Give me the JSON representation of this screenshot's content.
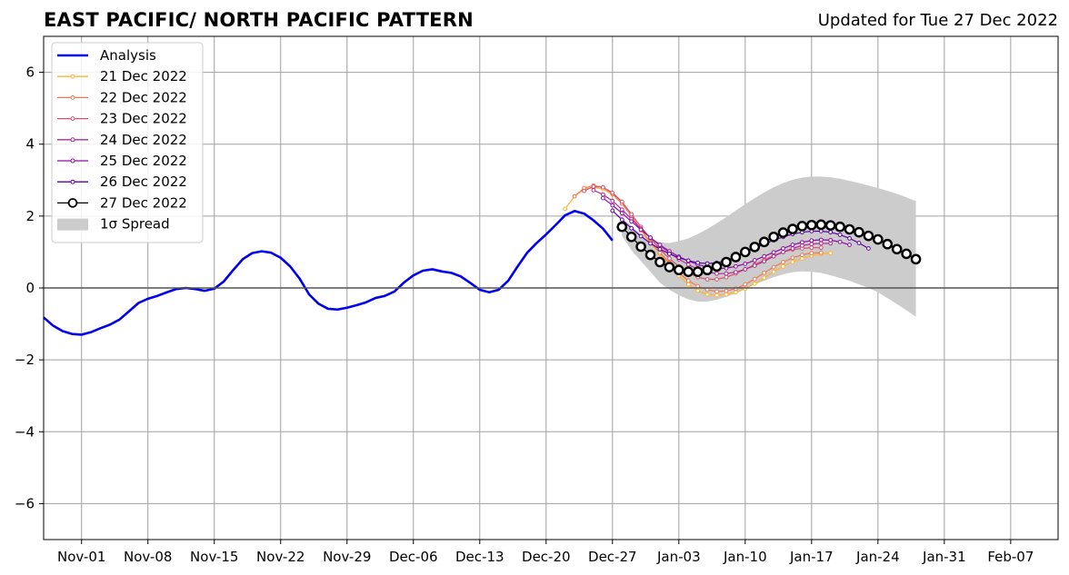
{
  "page": {
    "title": "EAST PACIFIC/ NORTH PACIFIC PATTERN",
    "updated": "Updated for Tue 27 Dec 2022"
  },
  "chart_data": {
    "type": "line",
    "title": "EAST PACIFIC/ NORTH PACIFIC PATTERN",
    "xlabel": "",
    "ylabel": "",
    "ylim": [
      -7,
      7
    ],
    "y_ticks": [
      -6,
      -4,
      -2,
      0,
      2,
      4,
      6
    ],
    "y_tick_labels": [
      "−6",
      "−4",
      "−2",
      "0",
      "2",
      "4",
      "6"
    ],
    "x_axis": "days since 2022-10-26",
    "xlim": [
      0,
      107
    ],
    "x_ticks": [
      {
        "day": 4,
        "label": "Nov-01"
      },
      {
        "day": 11,
        "label": "Nov-08"
      },
      {
        "day": 18,
        "label": "Nov-15"
      },
      {
        "day": 25,
        "label": "Nov-22"
      },
      {
        "day": 32,
        "label": "Nov-29"
      },
      {
        "day": 39,
        "label": "Dec-06"
      },
      {
        "day": 46,
        "label": "Dec-13"
      },
      {
        "day": 53,
        "label": "Dec-20"
      },
      {
        "day": 60,
        "label": "Dec-27"
      },
      {
        "day": 67,
        "label": "Jan-03"
      },
      {
        "day": 74,
        "label": "Jan-10"
      },
      {
        "day": 81,
        "label": "Jan-17"
      },
      {
        "day": 88,
        "label": "Jan-24"
      },
      {
        "day": 95,
        "label": "Jan-31"
      },
      {
        "day": 102,
        "label": "Feb-07"
      }
    ],
    "grid": true,
    "legend_position": "top-left",
    "analysis": {
      "name": "Analysis",
      "color": "#0000ee",
      "x_start": 0,
      "values": [
        -0.82,
        -1.05,
        -1.2,
        -1.28,
        -1.3,
        -1.23,
        -1.12,
        -1.02,
        -0.88,
        -0.65,
        -0.42,
        -0.3,
        -0.22,
        -0.12,
        -0.03,
        0.0,
        -0.03,
        -0.08,
        -0.02,
        0.18,
        0.5,
        0.8,
        0.97,
        1.02,
        0.98,
        0.84,
        0.6,
        0.26,
        -0.18,
        -0.44,
        -0.58,
        -0.6,
        -0.55,
        -0.48,
        -0.4,
        -0.28,
        -0.22,
        -0.1,
        0.15,
        0.35,
        0.48,
        0.52,
        0.46,
        0.42,
        0.32,
        0.14,
        -0.05,
        -0.12,
        -0.05,
        0.2,
        0.6,
        0.98,
        1.25,
        1.49,
        1.75,
        2.02,
        2.14,
        2.07,
        1.88,
        1.65,
        1.32
      ]
    },
    "forecasts": [
      {
        "name": "21 Dec 2022",
        "color": "#fdb42f",
        "x_start": 55,
        "values": [
          2.2,
          2.55,
          2.75,
          2.8,
          2.75,
          2.6,
          2.35,
          2.0,
          1.6,
          1.25,
          0.95,
          0.65,
          0.35,
          0.1,
          -0.08,
          -0.18,
          -0.2,
          -0.18,
          -0.12,
          -0.02,
          0.12,
          0.28,
          0.45,
          0.6,
          0.72,
          0.82,
          0.9,
          0.95,
          0.97
        ]
      },
      {
        "name": "22 Dec 2022",
        "color": "#ed7953",
        "x_start": 56,
        "values": [
          2.55,
          2.78,
          2.85,
          2.8,
          2.62,
          2.35,
          2.0,
          1.62,
          1.28,
          0.98,
          0.7,
          0.42,
          0.2,
          0.05,
          -0.05,
          -0.1,
          -0.08,
          -0.02,
          0.1,
          0.25,
          0.42,
          0.58,
          0.72,
          0.84,
          0.92,
          0.97,
          0.98
        ]
      },
      {
        "name": "23 Dec 2022",
        "color": "#d5536f",
        "x_start": 57,
        "values": [
          2.7,
          2.82,
          2.8,
          2.65,
          2.4,
          2.05,
          1.7,
          1.38,
          1.08,
          0.82,
          0.6,
          0.42,
          0.3,
          0.24,
          0.24,
          0.3,
          0.4,
          0.52,
          0.65,
          0.78,
          0.9,
          1.0,
          1.07,
          1.1,
          1.12,
          1.12
        ]
      },
      {
        "name": "24 Dec 2022",
        "color": "#b12a90",
        "x_start": 58,
        "values": [
          2.72,
          2.6,
          2.42,
          2.18,
          1.92,
          1.65,
          1.4,
          1.18,
          0.98,
          0.8,
          0.65,
          0.52,
          0.44,
          0.4,
          0.4,
          0.44,
          0.52,
          0.62,
          0.74,
          0.88,
          1.0,
          1.1,
          1.18,
          1.22,
          1.24,
          1.24
        ]
      },
      {
        "name": "25 Dec 2022",
        "color": "#8f0da4",
        "x_start": 59,
        "values": [
          2.5,
          2.3,
          2.08,
          1.85,
          1.62,
          1.4,
          1.2,
          1.02,
          0.87,
          0.75,
          0.65,
          0.58,
          0.54,
          0.55,
          0.6,
          0.67,
          0.77,
          0.88,
          0.99,
          1.1,
          1.2,
          1.27,
          1.32,
          1.34,
          1.33,
          1.28,
          1.2
        ]
      },
      {
        "name": "26 Dec 2022",
        "color": "#5c01a6",
        "x_start": 60,
        "values": [
          2.15,
          1.9,
          1.66,
          1.44,
          1.24,
          1.08,
          0.95,
          0.84,
          0.76,
          0.7,
          0.68,
          0.7,
          0.77,
          0.87,
          0.98,
          1.1,
          1.22,
          1.33,
          1.42,
          1.5,
          1.55,
          1.58,
          1.58,
          1.55,
          1.48,
          1.38,
          1.25,
          1.1
        ]
      },
      {
        "name": "27 Dec 2022",
        "color": "#000000",
        "x_start": 61,
        "values": [
          1.7,
          1.42,
          1.15,
          0.92,
          0.72,
          0.58,
          0.5,
          0.45,
          0.45,
          0.5,
          0.6,
          0.72,
          0.86,
          1.0,
          1.14,
          1.28,
          1.42,
          1.54,
          1.64,
          1.72,
          1.75,
          1.76,
          1.74,
          1.7,
          1.63,
          1.55,
          1.45,
          1.35,
          1.22,
          1.08,
          0.95,
          0.8
        ]
      }
    ],
    "spread": {
      "name": "1σ Spread",
      "color": "#cccccc",
      "x_start": 61,
      "lower": [
        1.45,
        1.05,
        0.75,
        0.45,
        0.15,
        -0.05,
        -0.2,
        -0.32,
        -0.38,
        -0.38,
        -0.33,
        -0.25,
        -0.15,
        -0.03,
        0.1,
        0.2,
        0.3,
        0.38,
        0.44,
        0.46,
        0.45,
        0.42,
        0.35,
        0.28,
        0.2,
        0.1,
        0.0,
        -0.12,
        -0.28,
        -0.45,
        -0.62,
        -0.8
      ],
      "upper": [
        1.95,
        1.72,
        1.5,
        1.35,
        1.27,
        1.25,
        1.3,
        1.38,
        1.5,
        1.64,
        1.8,
        1.97,
        2.15,
        2.33,
        2.5,
        2.66,
        2.8,
        2.92,
        3.01,
        3.07,
        3.1,
        3.1,
        3.08,
        3.04,
        2.98,
        2.92,
        2.85,
        2.78,
        2.7,
        2.62,
        2.52,
        2.42
      ]
    }
  }
}
